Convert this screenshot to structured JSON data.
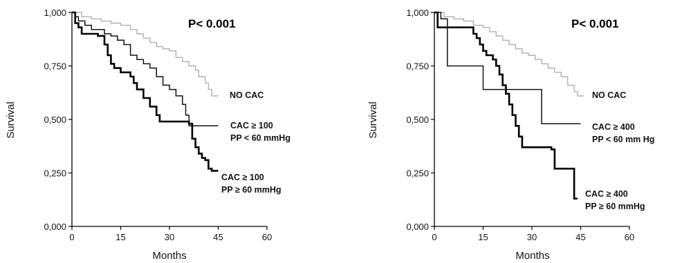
{
  "chart_data": [
    {
      "type": "line",
      "title": "P< 0.001",
      "xlabel": "Months",
      "ylabel": "Survival",
      "xlim": [
        0,
        60
      ],
      "ylim": [
        0,
        1
      ],
      "x_ticks": [
        "0",
        "15",
        "30",
        "45",
        "60"
      ],
      "y_ticks": [
        "0,000",
        "0,250",
        "0,500",
        "0,750",
        "1,000"
      ],
      "series": [
        {
          "name": "NO CAC",
          "color": "#b0b0b0",
          "points": [
            [
              0,
              1.0
            ],
            [
              3,
              0.98
            ],
            [
              6,
              0.97
            ],
            [
              9,
              0.96
            ],
            [
              12,
              0.95
            ],
            [
              15,
              0.94
            ],
            [
              18,
              0.92
            ],
            [
              20,
              0.9
            ],
            [
              22,
              0.88
            ],
            [
              24,
              0.86
            ],
            [
              26,
              0.84
            ],
            [
              28,
              0.83
            ],
            [
              30,
              0.82
            ],
            [
              32,
              0.79
            ],
            [
              34,
              0.77
            ],
            [
              36,
              0.75
            ],
            [
              38,
              0.73
            ],
            [
              39,
              0.7
            ],
            [
              41,
              0.67
            ],
            [
              42,
              0.64
            ],
            [
              43,
              0.61
            ],
            [
              45,
              0.61
            ]
          ]
        },
        {
          "name": "CAC ≥ 100\nPP < 60 mmHg",
          "color": "#111111",
          "points": [
            [
              0,
              1.0
            ],
            [
              1,
              0.98
            ],
            [
              2,
              0.96
            ],
            [
              4,
              0.94
            ],
            [
              6,
              0.92
            ],
            [
              8,
              0.92
            ],
            [
              10,
              0.9
            ],
            [
              12,
              0.89
            ],
            [
              14,
              0.87
            ],
            [
              16,
              0.85
            ],
            [
              18,
              0.8
            ],
            [
              20,
              0.78
            ],
            [
              22,
              0.76
            ],
            [
              24,
              0.74
            ],
            [
              26,
              0.7
            ],
            [
              28,
              0.66
            ],
            [
              30,
              0.64
            ],
            [
              32,
              0.61
            ],
            [
              34,
              0.57
            ],
            [
              35,
              0.52
            ],
            [
              36,
              0.47
            ],
            [
              45,
              0.47
            ]
          ]
        },
        {
          "name": "CAC ≥ 100\nPP ≥ 60 mmHg",
          "color": "#000000",
          "points": [
            [
              0,
              1.0
            ],
            [
              1,
              0.95
            ],
            [
              2,
              0.93
            ],
            [
              3,
              0.9
            ],
            [
              8,
              0.89
            ],
            [
              10,
              0.85
            ],
            [
              11,
              0.8
            ],
            [
              12,
              0.76
            ],
            [
              13,
              0.74
            ],
            [
              15,
              0.72
            ],
            [
              18,
              0.7
            ],
            [
              19,
              0.67
            ],
            [
              20,
              0.64
            ],
            [
              22,
              0.6
            ],
            [
              24,
              0.56
            ],
            [
              26,
              0.52
            ],
            [
              27,
              0.49
            ],
            [
              36,
              0.48
            ],
            [
              37,
              0.41
            ],
            [
              38,
              0.37
            ],
            [
              39,
              0.34
            ],
            [
              40,
              0.32
            ],
            [
              41,
              0.31
            ],
            [
              42,
              0.27
            ],
            [
              43,
              0.26
            ],
            [
              45,
              0.26
            ]
          ]
        }
      ]
    },
    {
      "type": "line",
      "title": "P< 0.001",
      "xlabel": "Months",
      "ylabel": "Survival",
      "xlim": [
        0,
        60
      ],
      "ylim": [
        0,
        1
      ],
      "x_ticks": [
        "0",
        "15",
        "30",
        "45",
        "60"
      ],
      "y_ticks": [
        "0,000",
        "0,250",
        "0,500",
        "0,750",
        "1,000"
      ],
      "series": [
        {
          "name": "NO CAC",
          "color": "#b0b0b0",
          "points": [
            [
              0,
              1.0
            ],
            [
              3,
              0.98
            ],
            [
              6,
              0.97
            ],
            [
              9,
              0.96
            ],
            [
              12,
              0.94
            ],
            [
              15,
              0.93
            ],
            [
              17,
              0.91
            ],
            [
              19,
              0.89
            ],
            [
              21,
              0.87
            ],
            [
              23,
              0.85
            ],
            [
              25,
              0.83
            ],
            [
              27,
              0.81
            ],
            [
              29,
              0.8
            ],
            [
              31,
              0.78
            ],
            [
              33,
              0.76
            ],
            [
              35,
              0.74
            ],
            [
              37,
              0.72
            ],
            [
              39,
              0.7
            ],
            [
              41,
              0.66
            ],
            [
              43,
              0.63
            ],
            [
              44,
              0.61
            ],
            [
              46,
              0.61
            ]
          ]
        },
        {
          "name": "CAC ≥ 400\nPP < 60 mm Hg",
          "color": "#111111",
          "points": [
            [
              0,
              1.0
            ],
            [
              2,
              0.99
            ],
            [
              2,
              0.97
            ],
            [
              4,
              0.97
            ],
            [
              4,
              0.75
            ],
            [
              15,
              0.75
            ],
            [
              15,
              0.64
            ],
            [
              33,
              0.64
            ],
            [
              33,
              0.48
            ],
            [
              45,
              0.48
            ]
          ]
        },
        {
          "name": "CAC ≥ 400\nPP ≥ 60 mmHg",
          "color": "#000000",
          "points": [
            [
              0,
              1.0
            ],
            [
              1,
              0.93
            ],
            [
              11,
              0.93
            ],
            [
              12,
              0.9
            ],
            [
              13,
              0.88
            ],
            [
              14,
              0.85
            ],
            [
              15,
              0.82
            ],
            [
              16,
              0.8
            ],
            [
              18,
              0.78
            ],
            [
              19,
              0.75
            ],
            [
              20,
              0.71
            ],
            [
              21,
              0.66
            ],
            [
              22,
              0.62
            ],
            [
              23,
              0.57
            ],
            [
              24,
              0.52
            ],
            [
              25,
              0.47
            ],
            [
              26,
              0.42
            ],
            [
              27,
              0.37
            ],
            [
              36,
              0.36
            ],
            [
              37,
              0.27
            ],
            [
              42,
              0.27
            ],
            [
              43,
              0.13
            ],
            [
              44,
              0.13
            ]
          ]
        }
      ]
    }
  ]
}
